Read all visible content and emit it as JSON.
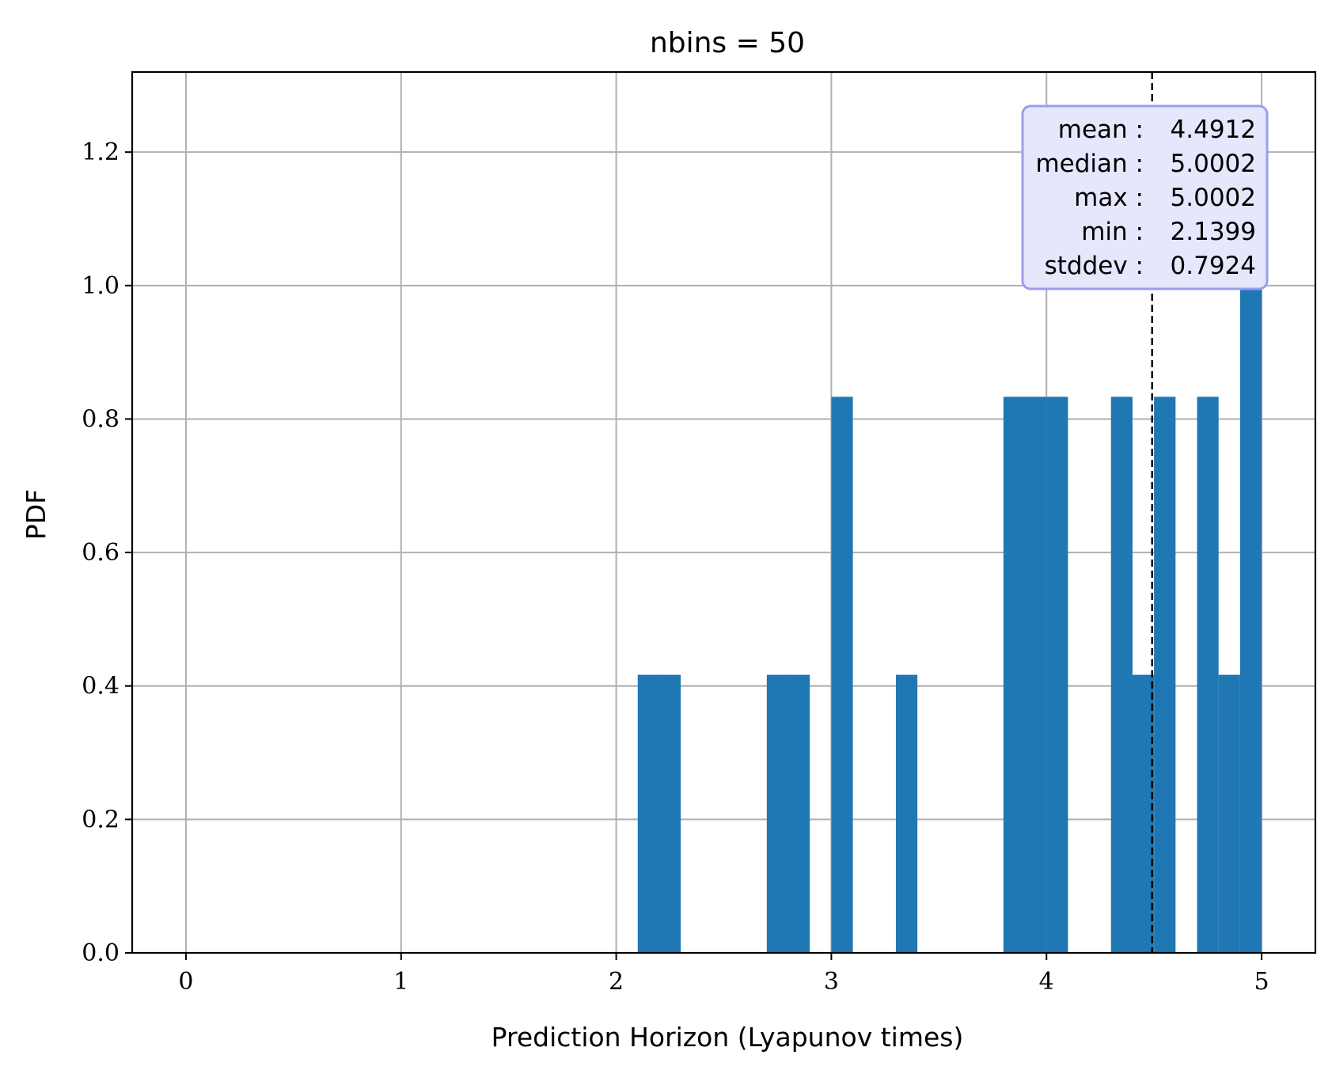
{
  "chart_data": {
    "type": "bar",
    "title": "nbins = 50",
    "xlabel": "Prediction Horizon (Lyapunov times)",
    "ylabel": "PDF",
    "xlim": [
      -0.25,
      5.25
    ],
    "ylim": [
      0,
      1.32
    ],
    "xticks": [
      0,
      1,
      2,
      3,
      4,
      5
    ],
    "xtick_labels": [
      "0",
      "1",
      "2",
      "3",
      "4",
      "5"
    ],
    "yticks": [
      0.0,
      0.2,
      0.4,
      0.6,
      0.8,
      1.0,
      1.2
    ],
    "ytick_labels": [
      "0.0",
      "0.2",
      "0.4",
      "0.6",
      "0.8",
      "1.0",
      "1.2"
    ],
    "grid": true,
    "bar_color": "#1f77b4",
    "bins": [
      {
        "x0": 2.1,
        "x1": 2.2,
        "value": 0.4167
      },
      {
        "x0": 2.2,
        "x1": 2.3,
        "value": 0.4167
      },
      {
        "x0": 2.7,
        "x1": 2.8,
        "value": 0.4167
      },
      {
        "x0": 2.8,
        "x1": 2.9,
        "value": 0.4167
      },
      {
        "x0": 3.0,
        "x1": 3.1,
        "value": 0.8333
      },
      {
        "x0": 3.3,
        "x1": 3.4,
        "value": 0.4167
      },
      {
        "x0": 3.8,
        "x1": 3.9,
        "value": 0.8333
      },
      {
        "x0": 3.9,
        "x1": 4.0,
        "value": 0.8333
      },
      {
        "x0": 4.0,
        "x1": 4.1,
        "value": 0.8333
      },
      {
        "x0": 4.3,
        "x1": 4.4,
        "value": 0.8333
      },
      {
        "x0": 4.4,
        "x1": 4.5,
        "value": 0.4167
      },
      {
        "x0": 4.5,
        "x1": 4.6,
        "value": 0.8333
      },
      {
        "x0": 4.7,
        "x1": 4.8,
        "value": 0.8333
      },
      {
        "x0": 4.8,
        "x1": 4.9,
        "value": 0.4167
      },
      {
        "x0": 4.9,
        "x1": 5.0,
        "value": 1.0
      }
    ],
    "mean_line": {
      "x": 4.4912,
      "style": "dashed",
      "color": "#000000"
    },
    "stats_box": {
      "rows": [
        {
          "label": "mean :",
          "value": "4.4912"
        },
        {
          "label": "median :",
          "value": "5.0002"
        },
        {
          "label": "max :",
          "value": "5.0002"
        },
        {
          "label": "min :",
          "value": "2.1399"
        },
        {
          "label": "stddev :",
          "value": "0.7924"
        }
      ],
      "fill": "#e6e6fc",
      "border": "#9c9cf0",
      "placement": "top-right"
    }
  }
}
